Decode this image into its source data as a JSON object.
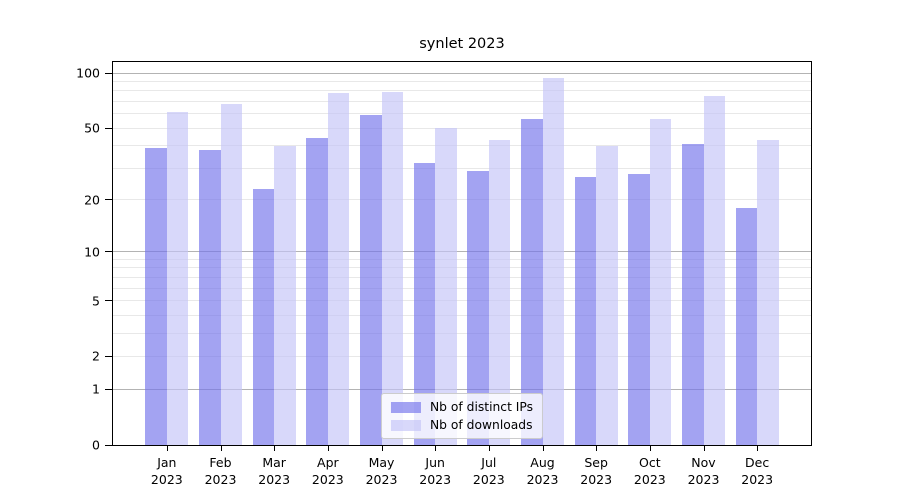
{
  "chart_data": {
    "type": "bar",
    "title": "synlet 2023",
    "months": [
      "Jan",
      "Feb",
      "Mar",
      "Apr",
      "May",
      "Jun",
      "Jul",
      "Aug",
      "Sep",
      "Oct",
      "Nov",
      "Dec"
    ],
    "year": "2023",
    "series": [
      {
        "name": "Nb of distinct IPs",
        "color": "rgba(116,116,236,0.66)",
        "values": [
          39,
          38,
          23,
          44,
          59,
          32,
          29,
          56,
          27,
          28,
          41,
          18
        ]
      },
      {
        "name": "Nb of downloads",
        "color": "rgba(196,196,247,0.66)",
        "values": [
          61,
          68,
          40,
          78,
          79,
          50,
          43,
          94,
          40,
          56,
          75,
          43
        ]
      }
    ],
    "y_axis": {
      "scale": "log1p",
      "ylim": [
        0,
        115
      ],
      "tick_values": [
        100,
        50,
        20,
        10,
        5,
        2,
        1,
        0
      ],
      "tick_labels": [
        "100",
        "50",
        "20",
        "10",
        "5",
        "2",
        "1",
        "0"
      ],
      "gridlines_major": [
        1,
        10,
        100
      ],
      "gridlines_minor": [
        2,
        3,
        4,
        5,
        6,
        7,
        8,
        9,
        20,
        30,
        40,
        50,
        60,
        70,
        80,
        90
      ]
    },
    "legend_position": "lower center",
    "grid": true,
    "colors": {
      "grid_major": "#b3b3b3",
      "grid_minor": "#e8e8e8",
      "spine": "#000000",
      "text": "#000000",
      "legend_border": "#cccccc",
      "legend_bg": "rgba(255,255,255,0.8)"
    }
  }
}
